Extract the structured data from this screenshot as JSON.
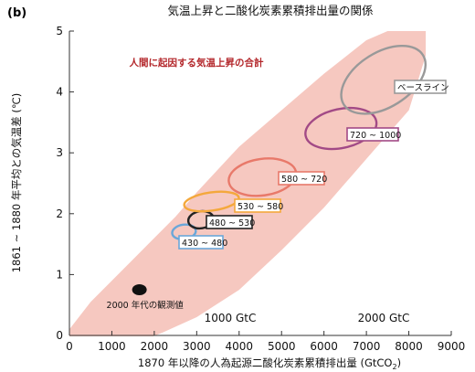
{
  "panel_label": "(b)",
  "chart_data": {
    "type": "scatter",
    "title": "気温上昇と二酸化炭素累積排出量の関係",
    "xlabel": "1870 年以降の人為起源二酸化炭素累積排出量 (GtCO",
    "xlabel_sub": "2",
    "xlabel_end": ")",
    "ylabel": "1861 ~ 1880 年平均との気温差 (℃)",
    "xlim": [
      0,
      9000
    ],
    "ylim": [
      0,
      5
    ],
    "x_ticks": [
      "0",
      "1000",
      "2000",
      "3000",
      "4000",
      "5000",
      "6000",
      "7000",
      "8000",
      "9000"
    ],
    "y_ticks": [
      "0",
      "1",
      "2",
      "3",
      "4",
      "5"
    ],
    "range_band": {
      "label": "人間に起因する気温上昇の合計",
      "upper": [
        [
          0,
          0.1
        ],
        [
          500,
          0.55
        ],
        [
          1000,
          0.9
        ],
        [
          1500,
          1.25
        ],
        [
          2000,
          1.6
        ],
        [
          2500,
          1.95
        ],
        [
          3000,
          2.35
        ],
        [
          4000,
          3.1
        ],
        [
          5000,
          3.7
        ],
        [
          6000,
          4.3
        ],
        [
          7000,
          4.85
        ],
        [
          7500,
          5.0
        ]
      ],
      "lower": [
        [
          8400,
          5.0
        ],
        [
          8400,
          4.6
        ],
        [
          8000,
          3.7
        ],
        [
          7000,
          2.9
        ],
        [
          6000,
          2.1
        ],
        [
          5000,
          1.4
        ],
        [
          4000,
          0.75
        ],
        [
          3000,
          0.3
        ],
        [
          2200,
          0.05
        ],
        [
          1500,
          -0.15
        ],
        [
          0,
          -0.15
        ]
      ],
      "color": "#f6c8c0"
    },
    "observed": {
      "label": "2000 年代の観測値",
      "x": 1650,
      "y": 0.75,
      "color": "#111111"
    },
    "scenarios": [
      {
        "name": "430 ~ 480",
        "cx": 2700,
        "cy": 1.7,
        "rx": 280,
        "ry": 0.12,
        "color": "#6aa7d9"
      },
      {
        "name": "480 ~ 530",
        "cx": 3100,
        "cy": 1.9,
        "rx": 300,
        "ry": 0.14,
        "color": "#222222"
      },
      {
        "name": "530 ~ 580",
        "cx": 3350,
        "cy": 2.2,
        "rx": 650,
        "ry": 0.15,
        "color": "#f4a83c"
      },
      {
        "name": "580 ~ 720",
        "cx": 4550,
        "cy": 2.6,
        "rx": 800,
        "ry": 0.3,
        "color": "#e8796a"
      },
      {
        "name": "720 ~ 1000",
        "cx": 6400,
        "cy": 3.4,
        "rx": 850,
        "ry": 0.32,
        "color": "#a24a86"
      },
      {
        "name": "ベースライン",
        "cx": 7400,
        "cy": 4.2,
        "rx": 1100,
        "ry": 0.45,
        "color": "#999999"
      }
    ],
    "annotations": [
      "1000 GtC",
      "2000 GtC"
    ]
  }
}
